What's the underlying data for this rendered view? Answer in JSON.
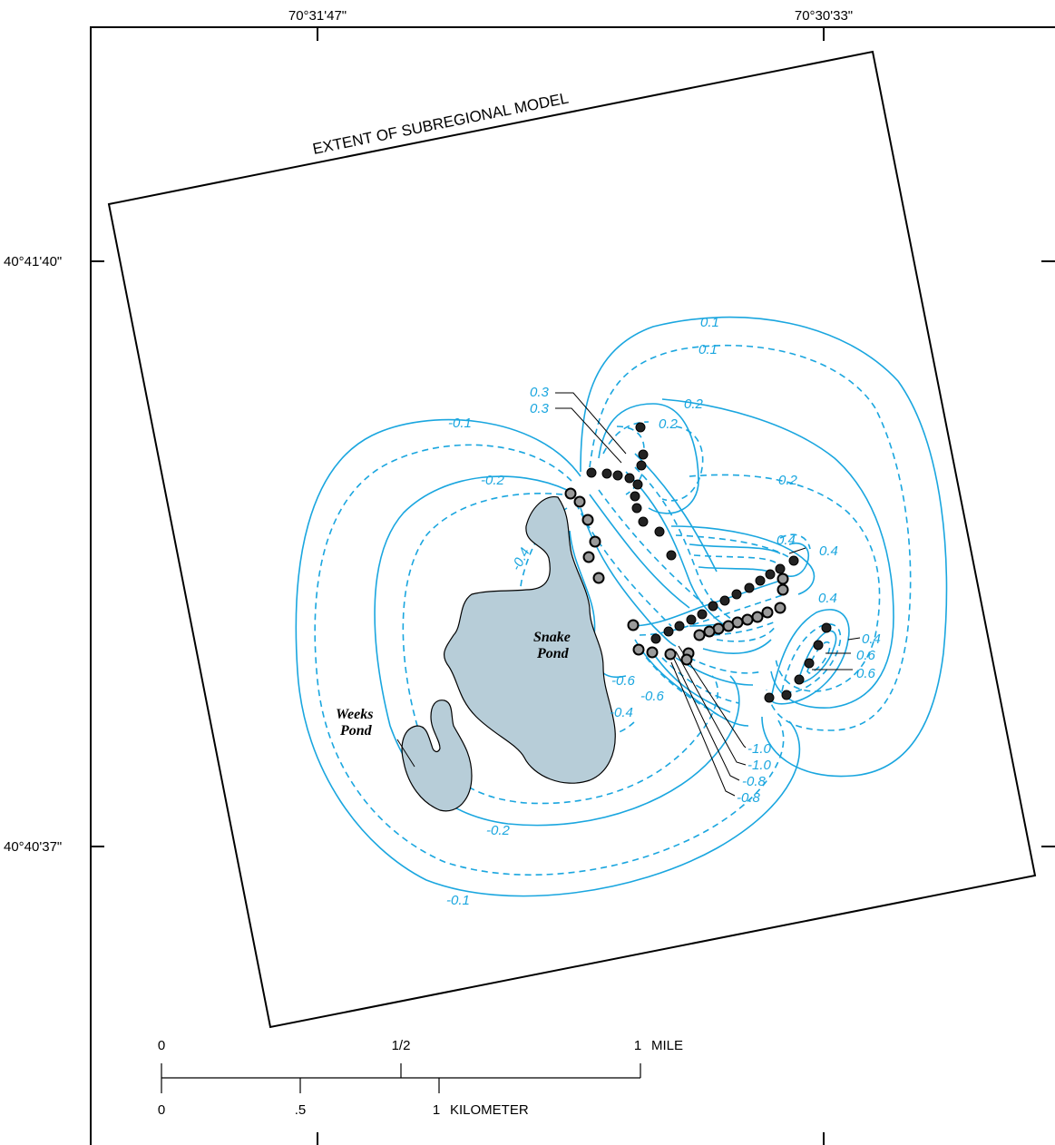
{
  "map": {
    "model_extent_label": "EXTENT OF SUBREGIONAL MODEL",
    "longitudes": [
      "70°31'47\"",
      "70°30'33\""
    ],
    "latitudes": [
      "40°41'40\"",
      "40°40'37\""
    ],
    "ponds": [
      {
        "name_line1": "Snake",
        "name_line2": "Pond"
      },
      {
        "name_line1": "Weeks",
        "name_line2": "Pond"
      }
    ],
    "contour_color": "#1aa6df",
    "pond_fill": "#b7cdd8",
    "contour_labels": [
      "0.1",
      "0.1",
      "0.2",
      "0.2",
      "0.2",
      "0.3",
      "0.3",
      "0.4",
      "0.4",
      "0.4",
      "0.4",
      "0.6",
      "0.6",
      "-0.1",
      "-0.1",
      "-0.2",
      "-0.2",
      "-0.4",
      "-0.4",
      "-0.6",
      "-0.6",
      "-1.0",
      "-1.0",
      "-0.8",
      "-0.8"
    ]
  },
  "scale_bar": {
    "mile_ticks": [
      "0",
      "1/2",
      "1"
    ],
    "mile_unit": "MILE",
    "km_ticks": [
      "0",
      ".5",
      "1"
    ],
    "km_unit": "KILOMETER"
  }
}
